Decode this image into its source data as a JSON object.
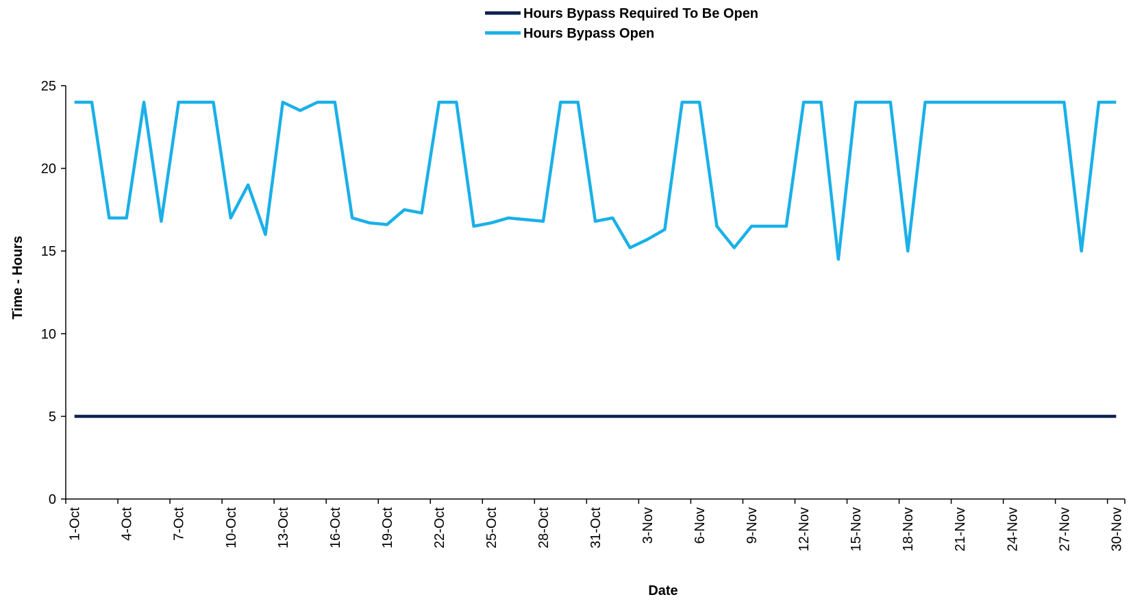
{
  "chart_data": {
    "type": "line",
    "x_label": "Date",
    "y_label": "Time - Hours",
    "categories": [
      "1-Oct",
      null,
      null,
      "4-Oct",
      null,
      null,
      "7-Oct",
      null,
      null,
      "10-Oct",
      null,
      null,
      "13-Oct",
      null,
      null,
      "16-Oct",
      null,
      null,
      "19-Oct",
      null,
      null,
      "22-Oct",
      null,
      null,
      "25-Oct",
      null,
      null,
      "28-Oct",
      null,
      null,
      "31-Oct",
      null,
      null,
      "3-Nov",
      null,
      null,
      "6-Nov",
      null,
      null,
      "9-Nov",
      null,
      null,
      "12-Nov",
      null,
      null,
      "15-Nov",
      null,
      null,
      "18-Nov",
      null,
      null,
      "21-Nov",
      null,
      null,
      "24-Nov",
      null,
      null,
      "27-Nov",
      null,
      null,
      "30-Nov"
    ],
    "series": [
      {
        "name": "Hours Bypass Required To Be Open",
        "color": "#0d2050",
        "values": [
          5,
          5,
          5,
          5,
          5,
          5,
          5,
          5,
          5,
          5,
          5,
          5,
          5,
          5,
          5,
          5,
          5,
          5,
          5,
          5,
          5,
          5,
          5,
          5,
          5,
          5,
          5,
          5,
          5,
          5,
          5,
          5,
          5,
          5,
          5,
          5,
          5,
          5,
          5,
          5,
          5,
          5,
          5,
          5,
          5,
          5,
          5,
          5,
          5,
          5,
          5,
          5,
          5,
          5,
          5,
          5,
          5,
          5,
          5,
          5,
          5
        ]
      },
      {
        "name": "Hours Bypass Open",
        "color": "#1ab0e8",
        "values": [
          24,
          24,
          17,
          17,
          24,
          16.8,
          24,
          24,
          24,
          17,
          19,
          16,
          24,
          23.5,
          24,
          24,
          17,
          16.7,
          16.6,
          17.5,
          17.3,
          24,
          24,
          16.5,
          16.7,
          17,
          16.9,
          16.8,
          24,
          24,
          16.8,
          17,
          15.2,
          15.7,
          16.3,
          24,
          24,
          16.5,
          15.2,
          16.5,
          16.5,
          16.5,
          24,
          24,
          14.5,
          24,
          24,
          24,
          15,
          24,
          24,
          24,
          24,
          24,
          24,
          24,
          24,
          24,
          15,
          24,
          24
        ]
      }
    ],
    "ylim": [
      0,
      25
    ],
    "yticks": [
      0,
      5,
      10,
      15,
      20,
      25
    ],
    "legend": "top"
  }
}
